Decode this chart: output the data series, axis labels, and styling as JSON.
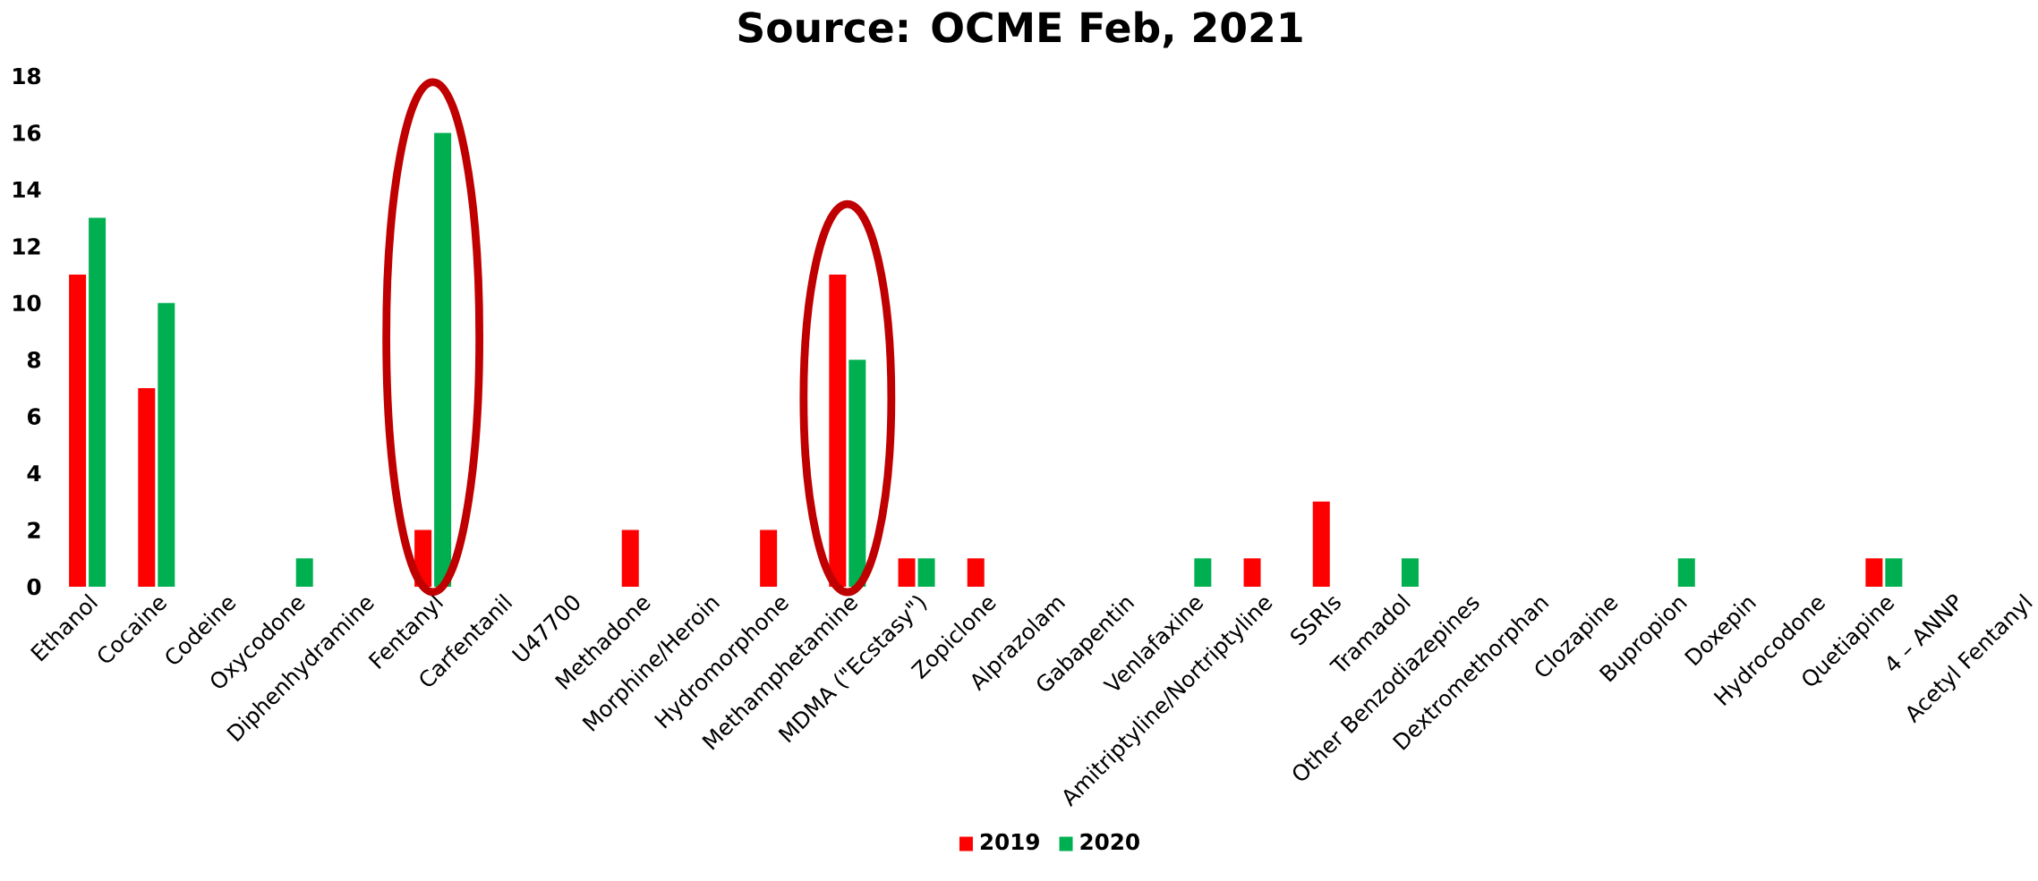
{
  "chart_data": {
    "type": "bar",
    "title": "Source: OCME Feb, 2021",
    "categories": [
      "Ethanol",
      "Cocaine",
      "Codeine",
      "Oxycodone",
      "Diphenhydramine",
      "Fentanyl",
      "Carfentanil",
      "U47700",
      "Methadone",
      "Morphine/Heroin",
      "Hydromorphone",
      "Methamphetamine",
      "MDMA (\"Ecstasy\")",
      "Zopiclone",
      "Alprazolam",
      "Gabapentin",
      "Venlafaxine",
      "Amitriptyline/Nortriptyline",
      "SSRIs",
      "Tramadol",
      "Other Benzodiazepines",
      "Dextromethorphan",
      "Clozapine",
      "Bupropion",
      "Doxepin",
      "Hydrocodone",
      "Quetiapine",
      "4 – ANNP",
      "Acetyl Fentanyl"
    ],
    "series": [
      {
        "name": "2019",
        "color": "#ff0000",
        "values": [
          11,
          7,
          null,
          null,
          null,
          2,
          null,
          null,
          2,
          null,
          2,
          11,
          1,
          1,
          null,
          null,
          null,
          1,
          3,
          null,
          null,
          null,
          null,
          null,
          null,
          null,
          1,
          null,
          null
        ]
      },
      {
        "name": "2020",
        "color": "#00b050",
        "values": [
          13,
          10,
          null,
          1,
          null,
          16,
          null,
          null,
          null,
          null,
          null,
          8,
          1,
          null,
          null,
          null,
          1,
          null,
          null,
          1,
          null,
          null,
          null,
          1,
          null,
          null,
          1,
          null,
          null
        ]
      }
    ],
    "ylim": [
      0,
      18
    ],
    "yticks": [
      0,
      2,
      4,
      6,
      8,
      10,
      12,
      14,
      16,
      18
    ],
    "grid": false,
    "legend": "bottom"
  }
}
